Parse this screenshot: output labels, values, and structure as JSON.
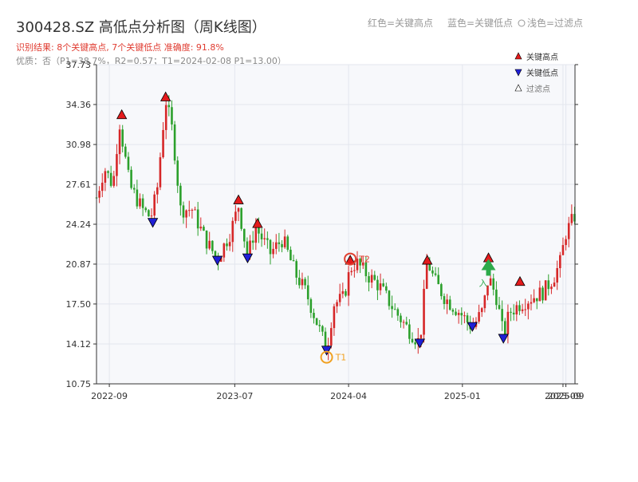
{
  "header": {
    "title": "300428.SZ 高低点分析图（周K线图）",
    "result_line": "识别结果: 8个关键高点, 7个关键低点   准确度: 91.8%",
    "quality_line": "优质：否（P1=38.7%，R2=0.57；T1=2024-02-08 P1=13.00）",
    "legend_red": "红色=关键高点",
    "legend_blue": "蓝色=关键低点",
    "legend_light": "浅色=过滤点"
  },
  "colors": {
    "up": "#d62728",
    "down": "#2ca02c",
    "high_marker": "#e41a1c",
    "low_marker": "#1f1fd6",
    "title": "#333333",
    "result_text": "#e03c31",
    "quality_text": "#888888",
    "t1": "#f0a020",
    "t2": "#e04030",
    "entry": "#2daa4a",
    "plot_bg": "#f7f8fb"
  },
  "chart_data": {
    "type": "candlestick",
    "title": "300428.SZ 高低点分析图（周K线图）",
    "xlabel": "",
    "ylabel": "",
    "ylim": [
      10.75,
      37.73
    ],
    "y_ticks": [
      10.75,
      14.12,
      17.5,
      20.87,
      24.24,
      27.61,
      30.98,
      34.36,
      37.73
    ],
    "y_tick_labels": [
      "10.75",
      "14.12",
      "17.50",
      "20.87",
      "24.24",
      "27.61",
      "30.98",
      "34.36",
      "37.73"
    ],
    "xlim": [
      "2022-08-01",
      "2025-09-30"
    ],
    "x_ticks": [
      "2022-09-01",
      "2023-07-01",
      "2024-04-01",
      "2025-01-01",
      "2025-09-01",
      "2025-09-08"
    ],
    "x_tick_labels": [
      "2022-09",
      "2023-07",
      "2024-04",
      "2025-01",
      "2025-09",
      "2025-09"
    ],
    "grid": true,
    "waypoints": [
      [
        "2022-08-01",
        26.5
      ],
      [
        "2022-08-20",
        29.0
      ],
      [
        "2022-09-10",
        27.5
      ],
      [
        "2022-09-25",
        33.0
      ],
      [
        "2022-10-20",
        27.5
      ],
      [
        "2022-11-20",
        25.5
      ],
      [
        "2022-12-10",
        24.8
      ],
      [
        "2022-12-25",
        27.0
      ],
      [
        "2023-01-15",
        34.8
      ],
      [
        "2023-02-01",
        32.0
      ],
      [
        "2023-02-20",
        25.5
      ],
      [
        "2023-03-20",
        25.5
      ],
      [
        "2023-04-20",
        23.0
      ],
      [
        "2023-05-20",
        21.3
      ],
      [
        "2023-06-20",
        23.5
      ],
      [
        "2023-07-10",
        25.8
      ],
      [
        "2023-08-01",
        21.5
      ],
      [
        "2023-08-20",
        24.0
      ],
      [
        "2023-09-25",
        21.8
      ],
      [
        "2023-10-25",
        23.0
      ],
      [
        "2023-11-25",
        20.0
      ],
      [
        "2023-12-20",
        18.5
      ],
      [
        "2024-01-25",
        15.0
      ],
      [
        "2024-02-08",
        13.6
      ],
      [
        "2024-02-25",
        17.5
      ],
      [
        "2024-03-20",
        18.0
      ],
      [
        "2024-04-05",
        20.5
      ],
      [
        "2024-04-20",
        21.0
      ],
      [
        "2024-05-15",
        20.0
      ],
      [
        "2024-06-15",
        19.0
      ],
      [
        "2024-07-20",
        17.0
      ],
      [
        "2024-08-20",
        15.5
      ],
      [
        "2024-09-20",
        14.2
      ],
      [
        "2024-10-08",
        21.2
      ],
      [
        "2024-10-25",
        19.5
      ],
      [
        "2024-11-20",
        18.0
      ],
      [
        "2024-12-25",
        16.8
      ],
      [
        "2025-01-25",
        15.5
      ],
      [
        "2025-02-20",
        17.0
      ],
      [
        "2025-03-05",
        19.8
      ],
      [
        "2025-03-25",
        18.0
      ],
      [
        "2025-04-10",
        14.8
      ],
      [
        "2025-04-25",
        16.8
      ],
      [
        "2025-05-20",
        17.5
      ],
      [
        "2025-06-15",
        18.0
      ],
      [
        "2025-07-15",
        18.5
      ],
      [
        "2025-08-10",
        19.8
      ],
      [
        "2025-08-25",
        21.0
      ],
      [
        "2025-09-08",
        23.5
      ],
      [
        "2025-09-30",
        25.0
      ]
    ],
    "key_highs": [
      {
        "date": "2022-10-01",
        "price": 33.5
      },
      {
        "date": "2023-01-15",
        "price": 35.0
      },
      {
        "date": "2023-07-10",
        "price": 26.3
      },
      {
        "date": "2023-08-25",
        "price": 24.3
      },
      {
        "date": "2024-04-05",
        "price": 21.2
      },
      {
        "date": "2024-10-08",
        "price": 21.2
      },
      {
        "date": "2025-03-05",
        "price": 21.4
      },
      {
        "date": "2025-05-20",
        "price": 19.4
      }
    ],
    "key_lows": [
      {
        "date": "2022-12-15",
        "price": 24.4
      },
      {
        "date": "2023-05-20",
        "price": 21.2
      },
      {
        "date": "2023-08-01",
        "price": 21.4
      },
      {
        "date": "2024-02-08",
        "price": 13.6
      },
      {
        "date": "2024-09-20",
        "price": 14.2
      },
      {
        "date": "2025-01-25",
        "price": 15.6
      },
      {
        "date": "2025-04-10",
        "price": 14.6
      }
    ],
    "annotations": [
      {
        "label": "T1",
        "date": "2024-02-08",
        "price": 13.0
      },
      {
        "label": "T2",
        "date": "2024-04-05",
        "price": 21.3
      },
      {
        "label": "入",
        "date": "2025-03-05",
        "price": 20.5
      }
    ],
    "legend": {
      "position": "top-right",
      "entries": [
        "关键高点",
        "关键低点",
        "过滤点"
      ]
    }
  }
}
